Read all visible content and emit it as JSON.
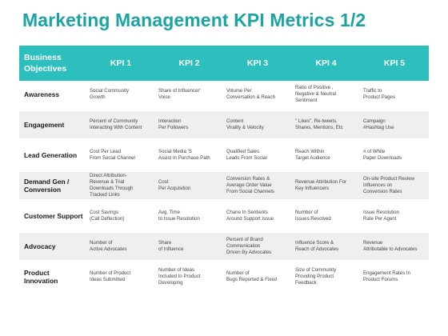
{
  "title": "Marketing Management KPI Metrics 1/2",
  "table": {
    "header": {
      "objective": "Business\nObjectives",
      "kpis": [
        "KPI 1",
        "KPI 2",
        "KPI 3",
        "KPI 4",
        "KPI 5"
      ]
    },
    "rows": [
      {
        "objective": "Awareness",
        "cells": [
          "Social Community\nGrowth",
          "Share of Influencer'\nVoice",
          "Volume Per\nConversation & Reach",
          "Ratio of Positive ,\nNegative & Neutral\nSentiment",
          "Traffic to\nProduct Pages"
        ]
      },
      {
        "objective": "Engagement",
        "cells": [
          "Percent of Community\nInteracting With Content",
          "Interaction\nPer Followers",
          "Content\nVirality & Velocity",
          "\" Likes\", Re-tweets,\nShares, Mentions, Etc",
          "Campaign\n#Hashtag Use"
        ]
      },
      {
        "objective": "Lead Generation",
        "cells": [
          "Cost Per Lead\nFrom Social Channel",
          "Social Media 'S\nAssist In Purchase Path",
          "Qualified Sales\nLeads From Social",
          "Reach Within\nTarget Audience",
          "# of White\nPaper Downloads"
        ]
      },
      {
        "objective": "Demand Gen /\nConversion",
        "cells": [
          "Direct Attribution-\nRevenue & Trial\nDownloads Through\nTracked Links",
          "Cost\nPer Acquisition",
          "Conversion Rates &\nAverage Order Value\nFrom Social Channels",
          "Revenue Attribution For\nKey Influencers",
          "On-site Product Review\nInfluences on\nConversion Rates"
        ]
      },
      {
        "objective": "Customer Support",
        "cells": [
          "Cost Savings\n(Call Deflection)",
          "Avg. Time\nto Issue Resolution",
          "Chane In Sentients\nAround Support Issue",
          "Number of\nIssues Resolved",
          "Issue Resolution\nRate Per Agent"
        ]
      },
      {
        "objective": "Advocacy",
        "cells": [
          "Number of\nActive Advocates",
          "Share\nof Influence",
          "Percent of Brand\nCommunication\nDriven By Advocates",
          "Influence Score &\nReach of Advocates",
          "Revenue\nAttributable to Advocates"
        ]
      },
      {
        "objective": "Product\nInnovation",
        "cells": [
          "Number of Product\nIdeas Submitted",
          "Number of Ideas\nIncluded In Product\nDeveloping",
          "Number of\nBugs Reported & Fixed",
          "Size of Community\nProviding Product\nFeedback",
          "Engagement Rates In\nProduct Forums"
        ]
      }
    ]
  },
  "colors": {
    "title": "#1aa5a3",
    "header_bg": "#2cbfbd",
    "alt_row_bg": "#efefef"
  }
}
